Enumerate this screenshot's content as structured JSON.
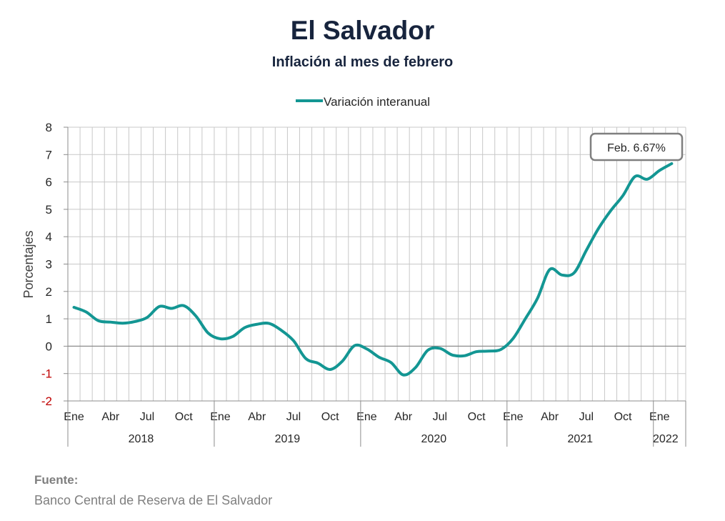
{
  "title": "El Salvador",
  "subtitle": "Inflación al mes de febrero",
  "source": {
    "label": "Fuente:",
    "text": "Banco Central de Reserva de El Salvador"
  },
  "colors": {
    "line": "#139693",
    "negative_tick": "#c00000",
    "grid": "#c8c8c8",
    "zero_line": "#8c8c8c"
  },
  "chart_data": {
    "type": "line",
    "title": "El Salvador",
    "subtitle": "Inflación al mes de febrero",
    "ylabel": "Porcentajes",
    "ylim": [
      -2,
      8
    ],
    "yticks": [
      -2,
      -1,
      0,
      1,
      2,
      3,
      4,
      5,
      6,
      7,
      8
    ],
    "grid": true,
    "legend_position": "top-center",
    "x": [
      "2018-01",
      "2018-02",
      "2018-03",
      "2018-04",
      "2018-05",
      "2018-06",
      "2018-07",
      "2018-08",
      "2018-09",
      "2018-10",
      "2018-11",
      "2018-12",
      "2019-01",
      "2019-02",
      "2019-03",
      "2019-04",
      "2019-05",
      "2019-06",
      "2019-07",
      "2019-08",
      "2019-09",
      "2019-10",
      "2019-11",
      "2019-12",
      "2020-01",
      "2020-02",
      "2020-03",
      "2020-04",
      "2020-05",
      "2020-06",
      "2020-07",
      "2020-08",
      "2020-09",
      "2020-10",
      "2020-11",
      "2020-12",
      "2021-01",
      "2021-02",
      "2021-03",
      "2021-04",
      "2021-05",
      "2021-06",
      "2021-07",
      "2021-08",
      "2021-09",
      "2021-10",
      "2021-11",
      "2021-12",
      "2022-01",
      "2022-02"
    ],
    "month_labels": [
      "Ene",
      "",
      "",
      "Abr",
      "",
      "",
      "Jul",
      "",
      "",
      "Oct",
      "",
      "",
      "Ene",
      "",
      "",
      "Abr",
      "",
      "",
      "Jul",
      "",
      "",
      "Oct",
      "",
      "",
      "Ene",
      "",
      "",
      "Abr",
      "",
      "",
      "Jul",
      "",
      "",
      "Oct",
      "",
      "",
      "Ene",
      "",
      "",
      "Abr",
      "",
      "",
      "Jul",
      "",
      "",
      "Oct",
      "",
      "",
      "Ene",
      ""
    ],
    "year_groups": [
      {
        "label": "2018",
        "months": 12
      },
      {
        "label": "2019",
        "months": 12
      },
      {
        "label": "2020",
        "months": 12
      },
      {
        "label": "2021",
        "months": 12
      },
      {
        "label": "2022",
        "months": 2
      }
    ],
    "series": [
      {
        "name": "Variación interanual",
        "values": [
          1.42,
          1.25,
          0.93,
          0.88,
          0.84,
          0.9,
          1.05,
          1.45,
          1.38,
          1.48,
          1.1,
          0.48,
          0.27,
          0.35,
          0.68,
          0.8,
          0.83,
          0.58,
          0.2,
          -0.45,
          -0.62,
          -0.85,
          -0.55,
          0.02,
          -0.1,
          -0.4,
          -0.6,
          -1.05,
          -0.78,
          -0.15,
          -0.08,
          -0.32,
          -0.35,
          -0.2,
          -0.18,
          -0.12,
          0.28,
          1.0,
          1.75,
          2.8,
          2.6,
          2.68,
          3.5,
          4.3,
          4.95,
          5.5,
          6.2,
          6.1,
          6.42,
          6.67
        ]
      }
    ],
    "annotation": "Feb. 6.67%"
  }
}
